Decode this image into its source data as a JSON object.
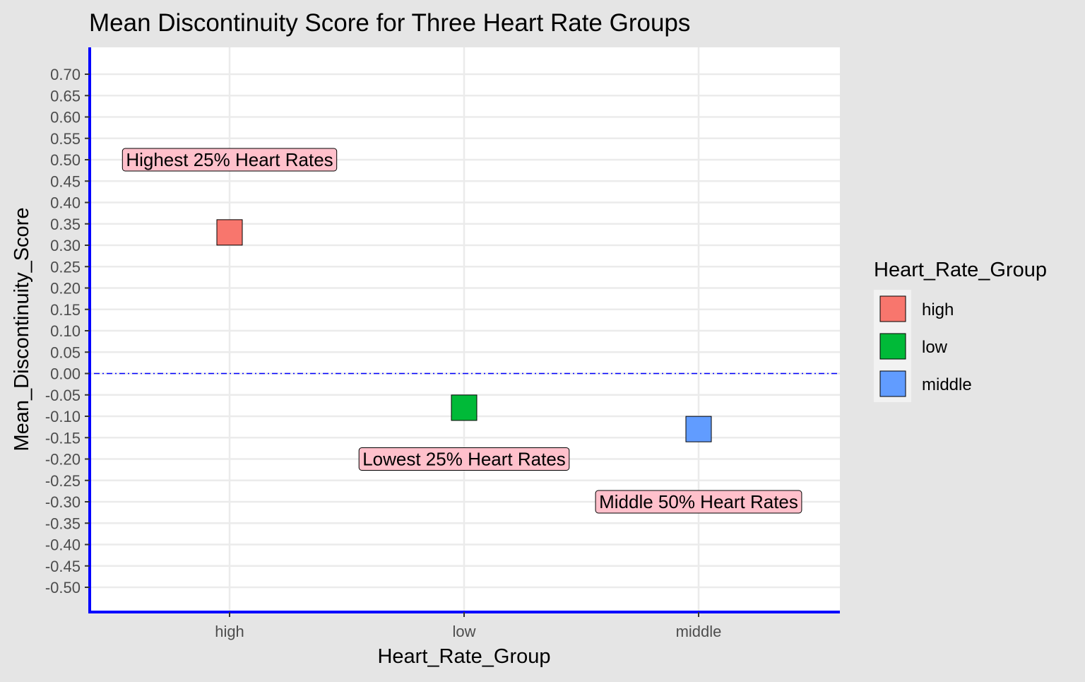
{
  "chart_data": {
    "type": "scatter",
    "title": "Mean Discontinuity Score for Three Heart Rate Groups",
    "xlabel": "Heart_Rate_Group",
    "ylabel": "Mean_Discontinuity_Score",
    "categories": [
      "high",
      "low",
      "middle"
    ],
    "ylim": [
      -0.5,
      0.7
    ],
    "y_ticks": [
      "0.70",
      "0.65",
      "0.60",
      "0.55",
      "0.50",
      "0.45",
      "0.40",
      "0.35",
      "0.30",
      "0.25",
      "0.20",
      "0.15",
      "0.10",
      "0.05",
      "0.00",
      "-0.05",
      "-0.10",
      "-0.15",
      "-0.20",
      "-0.25",
      "-0.30",
      "-0.35",
      "-0.40",
      "-0.45",
      "-0.50"
    ],
    "grid": true,
    "points": [
      {
        "category": "high",
        "value": 0.33,
        "color": "#F8766D"
      },
      {
        "category": "low",
        "value": -0.08,
        "color": "#00BA38"
      },
      {
        "category": "middle",
        "value": -0.13,
        "color": "#619CFF"
      }
    ],
    "reference_line": {
      "y": 0.0,
      "color": "#0000ff",
      "style": "dotdash"
    },
    "annotations": [
      {
        "text": "Highest 25% Heart Rates",
        "category": "high",
        "y": 0.5,
        "fill": "#ffc0cb"
      },
      {
        "text": "Lowest 25% Heart Rates",
        "category": "low",
        "y": -0.2,
        "fill": "#ffc0cb"
      },
      {
        "text": "Middle 50% Heart Rates",
        "category": "middle",
        "y": -0.3,
        "fill": "#ffc0cb"
      }
    ],
    "legend": {
      "title": "Heart_Rate_Group",
      "position": "right",
      "items": [
        {
          "label": "high",
          "color": "#F8766D"
        },
        {
          "label": "low",
          "color": "#00BA38"
        },
        {
          "label": "middle",
          "color": "#619CFF"
        }
      ]
    },
    "axis_line_color": "#0000ff"
  }
}
